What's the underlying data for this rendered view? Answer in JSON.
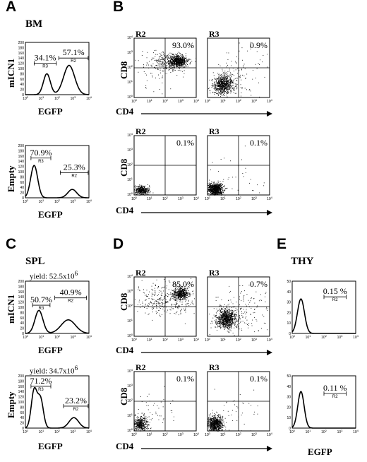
{
  "panels": {
    "A": {
      "letter": "A",
      "tissue": "BM",
      "histograms": [
        {
          "ylabel": "mICN1",
          "xlabel": "EGFP",
          "gate_left_pct": "34.1%",
          "gate_left_name": "R3",
          "gate_right_pct": "57.1%",
          "gate_right_name": "R2",
          "yticks": [
            "0",
            "20",
            "40",
            "60",
            "80",
            "100",
            "120",
            "140",
            "160",
            "180",
            "200"
          ]
        },
        {
          "ylabel": "Empty",
          "xlabel": "EGFP",
          "gate_left_pct": "70.9%",
          "gate_left_name": "R3",
          "gate_right_pct": "25.3%",
          "gate_right_name": "R2",
          "yticks": [
            "0",
            "20",
            "40",
            "60",
            "80",
            "100",
            "120",
            "140",
            "160",
            "180",
            "200"
          ]
        }
      ]
    },
    "B": {
      "letter": "B",
      "rows": [
        {
          "ylabel": "CD8",
          "xlabel": "CD4",
          "plots": [
            {
              "region": "R2",
              "pct": "93.0%"
            },
            {
              "region": "R3",
              "pct": "0.9%"
            }
          ]
        },
        {
          "ylabel": "CD8",
          "xlabel": "CD4",
          "plots": [
            {
              "region": "R2",
              "pct": "0.1%"
            },
            {
              "region": "R3",
              "pct": "0.1%"
            }
          ]
        }
      ]
    },
    "C": {
      "letter": "C",
      "tissue": "SPL",
      "histograms": [
        {
          "yield": "yield: 52.5x10",
          "yield_exp": "6",
          "ylabel": "mICN1",
          "xlabel": "EGFP",
          "gate_left_pct": "50.7%",
          "gate_left_name": "R3",
          "gate_right_pct": "40.9%",
          "gate_right_name": "R2",
          "yticks": [
            "0",
            "20",
            "40",
            "60",
            "80",
            "100",
            "120",
            "140",
            "160",
            "180",
            "200"
          ]
        },
        {
          "yield": "yield: 34.7x10",
          "yield_exp": "6",
          "ylabel": "Empty",
          "xlabel": "EGFP",
          "gate_left_pct": "71.2%",
          "gate_left_name": "R3",
          "gate_right_pct": "23.2%",
          "gate_right_name": "R2",
          "yticks": [
            "0",
            "20",
            "40",
            "60",
            "80",
            "100",
            "120",
            "140",
            "160",
            "180",
            "200"
          ]
        }
      ]
    },
    "D": {
      "letter": "D",
      "rows": [
        {
          "ylabel": "CD8",
          "xlabel": "CD4",
          "plots": [
            {
              "region": "R2",
              "pct": "85.0%"
            },
            {
              "region": "R3",
              "pct": "0.7%"
            }
          ]
        },
        {
          "ylabel": "CD8",
          "xlabel": "CD4",
          "plots": [
            {
              "region": "R2",
              "pct": "0.1%"
            },
            {
              "region": "R3",
              "pct": "0.1%"
            }
          ]
        }
      ]
    },
    "E": {
      "letter": "E",
      "tissue": "THY",
      "xlabel": "EGFP",
      "histograms": [
        {
          "pct": "0.15 %",
          "gate_name": "R2",
          "yticks": [
            "0",
            "10",
            "20",
            "30",
            "40",
            "50"
          ]
        },
        {
          "pct": "0.11 %",
          "gate_name": "R2",
          "yticks": [
            "0",
            "10",
            "20",
            "30",
            "40",
            "50"
          ]
        }
      ]
    }
  },
  "log_ticks": [
    "10",
    "10",
    "10",
    "10",
    "10"
  ],
  "log_exps": [
    "0",
    "1",
    "2",
    "3",
    "4"
  ]
}
